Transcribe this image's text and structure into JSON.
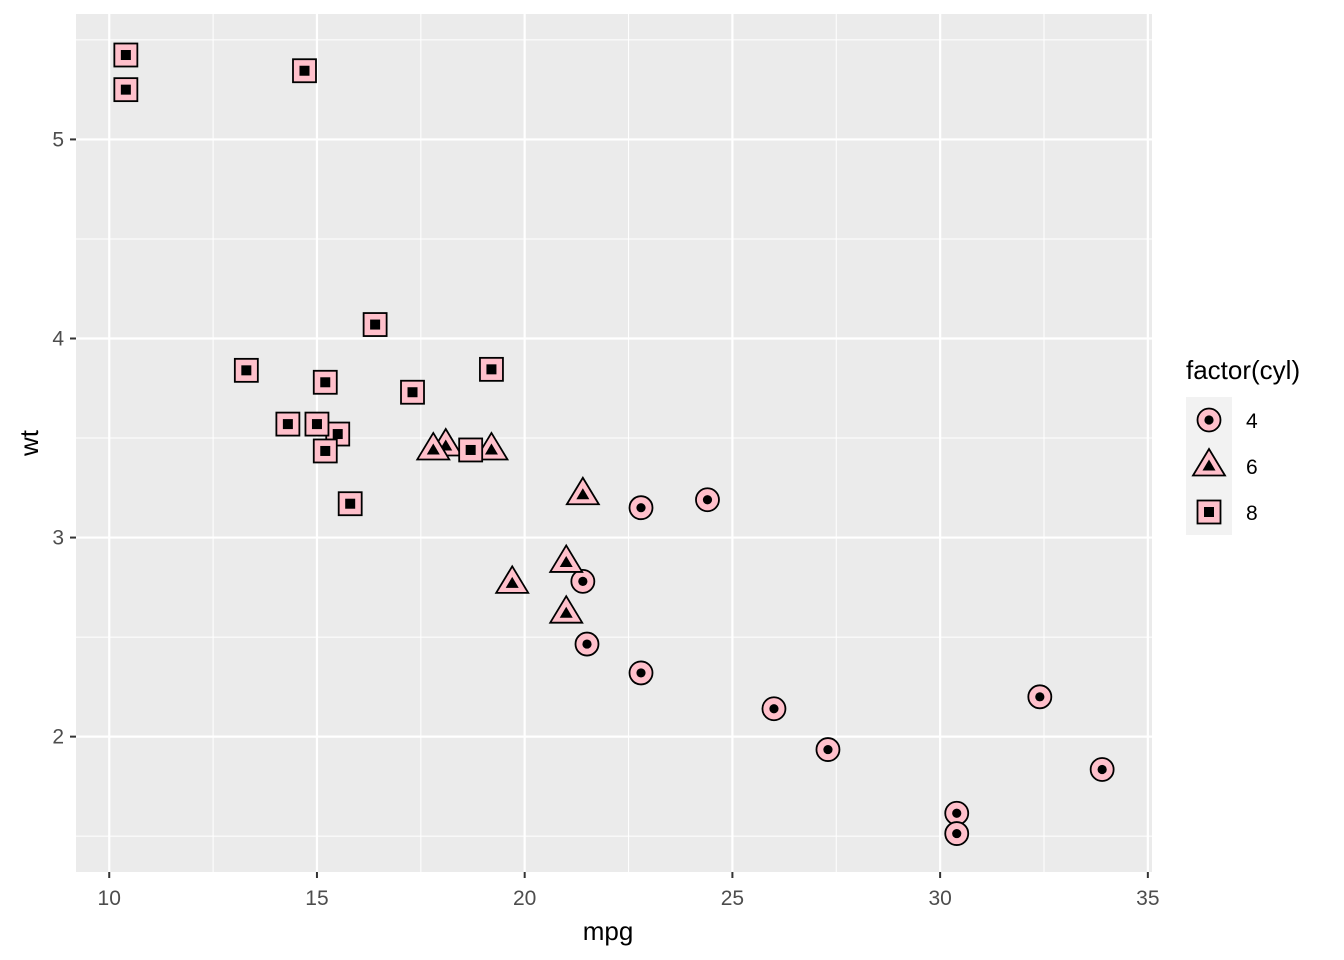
{
  "chart_data": {
    "type": "scatter",
    "xlabel": "mpg",
    "ylabel": "wt",
    "xlim": [
      9.2,
      35.1
    ],
    "ylim": [
      1.32,
      5.63
    ],
    "x_ticks": [
      10,
      15,
      20,
      25,
      30,
      35
    ],
    "y_ticks": [
      2,
      3,
      4,
      5
    ],
    "grid": true,
    "legend": {
      "title": "factor(cyl)",
      "placement": "right",
      "entries": [
        {
          "label": "4",
          "shape": "circle"
        },
        {
          "label": "6",
          "shape": "triangle"
        },
        {
          "label": "8",
          "shape": "square"
        }
      ]
    },
    "colors": {
      "panel": "#ebebeb",
      "grid": "#ffffff",
      "fill": "#ffc0cb",
      "stroke": "#000000",
      "tick_text": "#4d4d4d"
    },
    "series": [
      {
        "name": "4",
        "shape": "circle",
        "points": [
          [
            22.8,
            2.32
          ],
          [
            24.4,
            3.19
          ],
          [
            22.8,
            3.15
          ],
          [
            32.4,
            2.2
          ],
          [
            30.4,
            1.615
          ],
          [
            33.9,
            1.835
          ],
          [
            21.5,
            2.465
          ],
          [
            27.3,
            1.935
          ],
          [
            26.0,
            2.14
          ],
          [
            30.4,
            1.513
          ],
          [
            21.4,
            2.78
          ]
        ]
      },
      {
        "name": "6",
        "shape": "triangle",
        "points": [
          [
            21.0,
            2.62
          ],
          [
            21.0,
            2.875
          ],
          [
            21.4,
            3.215
          ],
          [
            18.1,
            3.46
          ],
          [
            19.2,
            3.44
          ],
          [
            17.8,
            3.44
          ],
          [
            19.7,
            2.77
          ]
        ]
      },
      {
        "name": "8",
        "shape": "square",
        "points": [
          [
            18.7,
            3.44
          ],
          [
            14.3,
            3.57
          ],
          [
            16.4,
            4.07
          ],
          [
            17.3,
            3.73
          ],
          [
            15.2,
            3.78
          ],
          [
            10.4,
            5.25
          ],
          [
            10.4,
            5.424
          ],
          [
            14.7,
            5.345
          ],
          [
            15.5,
            3.52
          ],
          [
            15.2,
            3.435
          ],
          [
            13.3,
            3.84
          ],
          [
            19.2,
            3.845
          ],
          [
            15.8,
            3.17
          ],
          [
            15.0,
            3.57
          ]
        ]
      }
    ]
  }
}
